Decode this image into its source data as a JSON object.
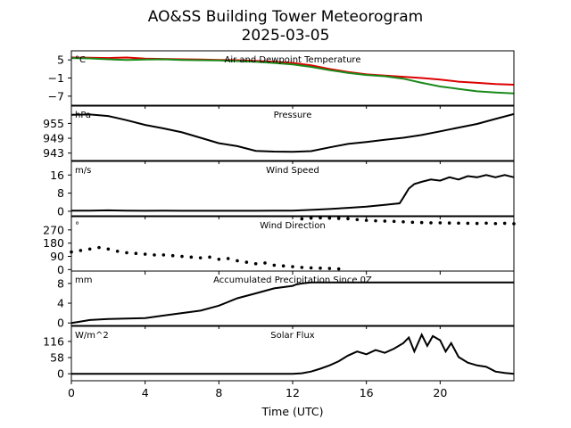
{
  "figure": {
    "title": "AO&SS Building Tower Meteorogram",
    "subtitle": "2025-03-05",
    "xlabel": "Time (UTC)"
  },
  "chart_data": [
    {
      "type": "line",
      "title": "Air and Dewpoint Temperature",
      "unit": "°C",
      "xlim": [
        0,
        24
      ],
      "ylim": [
        -10,
        8
      ],
      "yticks": [
        5,
        -1,
        -7
      ],
      "series": [
        {
          "color": "#dd0000",
          "x": [
            0,
            1,
            2,
            3,
            4,
            5,
            6,
            7,
            8,
            9,
            10,
            11,
            12,
            13,
            14,
            15,
            16,
            17,
            18,
            19,
            20,
            21,
            22,
            23,
            24
          ],
          "y": [
            5.8,
            5.7,
            5.6,
            5.8,
            5.4,
            5.3,
            5.2,
            5.1,
            5.0,
            4.9,
            4.7,
            4.4,
            4.0,
            3.2,
            2.0,
            1.0,
            0.2,
            -0.2,
            -0.6,
            -1.0,
            -1.5,
            -2.2,
            -2.6,
            -3.0,
            -3.2
          ]
        },
        {
          "color": "#1a8a1a",
          "x": [
            0,
            1,
            2,
            3,
            4,
            5,
            6,
            7,
            8,
            9,
            10,
            11,
            12,
            13,
            14,
            15,
            16,
            17,
            18,
            19,
            20,
            21,
            22,
            23,
            24
          ],
          "y": [
            5.6,
            5.5,
            5.2,
            5.0,
            5.1,
            5.2,
            5.0,
            4.9,
            4.8,
            4.6,
            4.4,
            4.0,
            3.5,
            2.7,
            1.6,
            0.7,
            0.0,
            -0.4,
            -1.2,
            -2.6,
            -3.8,
            -4.6,
            -5.4,
            -5.8,
            -6.1
          ]
        }
      ]
    },
    {
      "type": "line",
      "title": "Pressure",
      "unit": "hPa",
      "xlim": [
        0,
        24
      ],
      "ylim": [
        940,
        962
      ],
      "yticks": [
        955,
        949,
        943
      ],
      "series": [
        {
          "color": "#000000",
          "x": [
            0,
            1,
            2,
            3,
            4,
            5,
            6,
            7,
            8,
            9,
            10,
            11,
            12,
            13,
            14,
            15,
            16,
            17,
            18,
            19,
            20,
            21,
            22,
            23,
            24
          ],
          "y": [
            958.5,
            958.6,
            958.0,
            956.3,
            954.4,
            953.0,
            951.4,
            949.2,
            947.0,
            945.8,
            943.9,
            943.6,
            943.5,
            943.8,
            945.3,
            946.7,
            947.5,
            948.4,
            949.2,
            950.3,
            951.8,
            953.3,
            954.8,
            956.8,
            958.8
          ]
        }
      ]
    },
    {
      "type": "line",
      "title": "Wind Speed",
      "unit": "m/s",
      "xlim": [
        0,
        24
      ],
      "ylim": [
        -2,
        22
      ],
      "yticks": [
        16,
        8,
        0
      ],
      "series": [
        {
          "color": "#000000",
          "x": [
            0,
            1,
            2,
            3,
            4,
            5,
            6,
            7,
            8,
            9,
            10,
            11,
            12,
            13,
            14,
            15,
            16,
            17,
            17.8,
            18,
            18.3,
            18.6,
            19,
            19.5,
            20,
            20.5,
            21,
            21.5,
            22,
            22.5,
            23,
            23.5,
            24
          ],
          "y": [
            0.3,
            0.3,
            0.4,
            0.3,
            0.2,
            0.3,
            0.2,
            0.2,
            0.2,
            0.2,
            0.2,
            0.3,
            0.3,
            0.6,
            1.0,
            1.5,
            2.0,
            2.8,
            3.5,
            6,
            10,
            12,
            13,
            14,
            13.5,
            15,
            14,
            15.5,
            15,
            16,
            15,
            16,
            15
          ]
        }
      ]
    },
    {
      "type": "scatter",
      "title": "Wind Direction",
      "unit": "°",
      "xlim": [
        0,
        24
      ],
      "ylim": [
        -10,
        360
      ],
      "yticks": [
        270,
        180,
        90,
        0
      ],
      "series": [
        {
          "color": "#000000",
          "x": [
            0,
            0.5,
            1,
            1.5,
            2,
            2.5,
            3,
            3.5,
            4,
            4.5,
            5,
            5.5,
            6,
            6.5,
            7,
            7.5,
            8,
            8.5,
            9,
            9.5,
            10,
            10.5,
            11,
            11.5,
            12,
            12.5,
            13,
            13.5,
            14,
            14.5
          ],
          "y": [
            120,
            130,
            140,
            150,
            140,
            125,
            115,
            110,
            105,
            100,
            100,
            95,
            90,
            85,
            80,
            85,
            70,
            75,
            60,
            50,
            40,
            45,
            30,
            25,
            20,
            15,
            12,
            10,
            8,
            5
          ]
        },
        {
          "color": "#000000",
          "x": [
            12.5,
            13,
            13.5,
            14,
            14.5,
            15,
            15.5,
            16,
            16.5,
            17,
            17.5,
            18,
            18.5,
            19,
            19.5,
            20,
            20.5,
            21,
            21.5,
            22,
            22.5,
            23,
            23.5,
            24
          ],
          "y": [
            345,
            350,
            352,
            350,
            348,
            346,
            340,
            335,
            332,
            330,
            328,
            325,
            322,
            320,
            318,
            318,
            317,
            316,
            315,
            314,
            316,
            313,
            315,
            312
          ]
        }
      ]
    },
    {
      "type": "line",
      "title": "Accumulated Precipitation Since 0Z",
      "unit": "mm",
      "xlim": [
        0,
        24
      ],
      "ylim": [
        -0.5,
        10.5
      ],
      "yticks": [
        8,
        4,
        0
      ],
      "series": [
        {
          "color": "#000000",
          "x": [
            0,
            0.5,
            1,
            2,
            3,
            4,
            5,
            6,
            7,
            8,
            9,
            10,
            11,
            12,
            12.2,
            12.5,
            13,
            24
          ],
          "y": [
            0,
            0.3,
            0.6,
            0.8,
            0.9,
            1.0,
            1.5,
            2.0,
            2.5,
            3.5,
            5.0,
            6.0,
            7.0,
            7.5,
            7.8,
            8.0,
            8.2,
            8.2
          ]
        }
      ]
    },
    {
      "type": "line",
      "title": "Solar Flux",
      "unit": "W/m^2",
      "xlim": [
        0,
        24
      ],
      "ylim": [
        -25,
        170
      ],
      "yticks": [
        116,
        58,
        0
      ],
      "series": [
        {
          "color": "#000000",
          "x": [
            0,
            1,
            2,
            3,
            4,
            5,
            6,
            7,
            8,
            9,
            10,
            11,
            12,
            12.5,
            13,
            13.5,
            14,
            14.5,
            15,
            15.5,
            16,
            16.5,
            17,
            17.5,
            18,
            18.3,
            18.6,
            19,
            19.3,
            19.6,
            20,
            20.3,
            20.6,
            21,
            21.5,
            22,
            22.5,
            23,
            23.5,
            24
          ],
          "y": [
            0,
            0,
            0,
            0,
            0,
            0,
            0,
            0,
            0,
            0,
            0,
            0,
            0,
            2,
            8,
            18,
            30,
            45,
            65,
            80,
            70,
            85,
            75,
            90,
            110,
            130,
            80,
            140,
            100,
            135,
            120,
            80,
            110,
            60,
            40,
            30,
            25,
            8,
            3,
            0
          ]
        }
      ]
    }
  ],
  "xaxis": {
    "xlim": [
      0,
      24
    ],
    "ticks": [
      0,
      4,
      8,
      12,
      16,
      20
    ]
  }
}
